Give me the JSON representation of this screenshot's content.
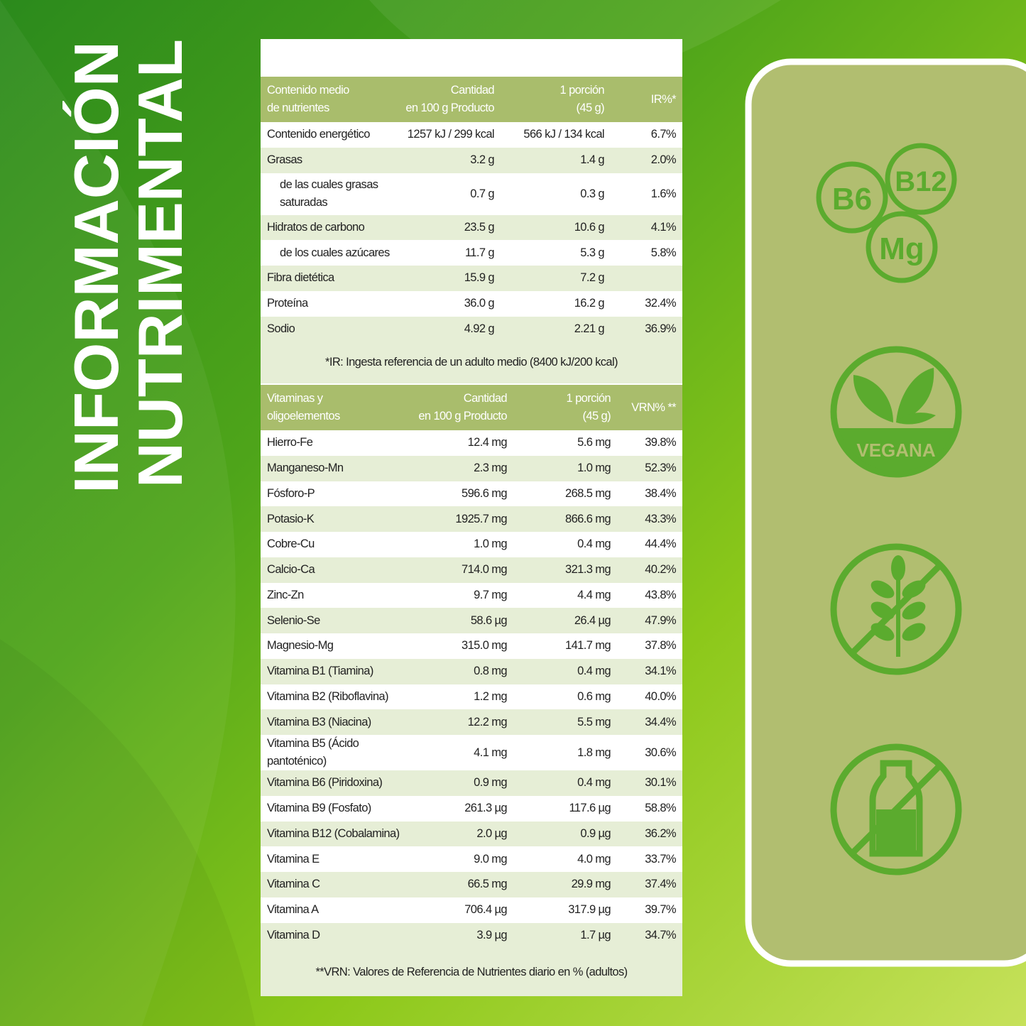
{
  "title": [
    "INFORMACIÓN",
    "NUTRIMENTAL"
  ],
  "nutrients": {
    "header": [
      "Contenido medio\nde nutrientes",
      "Cantidad\nen 100 g Producto",
      "1 porción\n(45 g)",
      "IR%*"
    ],
    "rows": [
      [
        "Contenido energético",
        "1257 kJ / 299 kcal",
        "566 kJ / 134 kcal",
        "6.7%"
      ],
      [
        "Grasas",
        "3.2 g",
        "1.4 g",
        "2.0%"
      ],
      [
        "de las cuales grasas\nsaturadas",
        "0.7 g",
        "0.3 g",
        "1.6%"
      ],
      [
        "Hidratos de carbono",
        "23.5 g",
        "10.6 g",
        "4.1%"
      ],
      [
        "de los cuales azúcares",
        "11.7 g",
        "5.3 g",
        "5.8%"
      ],
      [
        "Fibra dietética",
        "15.9 g",
        "7.2 g"
      ],
      [
        "Proteína",
        "36.0 g",
        "16.2 g",
        "32.4%"
      ],
      [
        "Sodio",
        "4.92 g",
        "2.21 g",
        "36.9%"
      ]
    ],
    "footnote": "*IR: Ingesta referencia de un adulto medio (8400 kJ/200 kcal)"
  },
  "vitamins": {
    "header": [
      "Vitaminas y\noligoelementos",
      "Cantidad\nen 100 g Producto",
      "1 porción\n(45 g)",
      "VRN% **"
    ],
    "rows": [
      [
        "Hierro-Fe",
        "12.4 mg",
        "5.6 mg",
        "39.8%"
      ],
      [
        "Manganeso-Mn",
        "2.3 mg",
        "1.0 mg",
        "52.3%"
      ],
      [
        "Fósforo-P",
        "596.6 mg",
        "268.5 mg",
        "38.4%"
      ],
      [
        "Potasio-K",
        "1925.7 mg",
        "866.6 mg",
        "43.3%"
      ],
      [
        "Cobre-Cu",
        "1.0 mg",
        "0.4 mg",
        "44.4%"
      ],
      [
        "Calcio-Ca",
        "714.0 mg",
        "321.3 mg",
        "40.2%"
      ],
      [
        "Zinc-Zn",
        "9.7 mg",
        "4.4 mg",
        "43.8%"
      ],
      [
        "Selenio-Se",
        "58.6 µg",
        "26.4 µg",
        "47.9%"
      ],
      [
        "Magnesio-Mg",
        "315.0 mg",
        "141.7 mg",
        "37.8%"
      ],
      [
        "Vitamina B1 (Tiamina)",
        "0.8 mg",
        "0.4 mg",
        "34.1%"
      ],
      [
        "Vitamina B2 (Riboflavina)",
        "1.2 mg",
        "0.6 mg",
        "40.0%"
      ],
      [
        "Vitamina B3 (Niacina)",
        "12.2 mg",
        "5.5 mg",
        "34.4%"
      ],
      [
        "Vitamina B5 (Ácido pantoténico)",
        "4.1 mg",
        "1.8 mg",
        "30.6%"
      ],
      [
        "Vitamina B6 (Piridoxina)",
        "0.9 mg",
        "0.4 mg",
        "30.1%"
      ],
      [
        "Vitamina B9 (Fosfato)",
        "261.3 µg",
        "117.6 µg",
        "58.8%"
      ],
      [
        "Vitamina B12 (Cobalamina)",
        "2.0 µg",
        "0.9 µg",
        "36.2%"
      ],
      [
        "Vitamina E",
        "9.0 mg",
        "4.0 mg",
        "33.7%"
      ],
      [
        "Vitamina C",
        "66.5 mg",
        "29.9 mg",
        "37.4%"
      ],
      [
        "Vitamina A",
        "706.4 µg",
        "317.9 µg",
        "39.7%"
      ],
      [
        "Vitamina D",
        "3.9 µg",
        "1.7 µg",
        "34.7%"
      ]
    ],
    "footnote": "**VRN: Valores de Referencia de Nutrientes diario en % (adultos)"
  },
  "badges": {
    "vitamins": [
      "B6",
      "B12",
      "Mg"
    ],
    "vegan": "VEGANA"
  }
}
